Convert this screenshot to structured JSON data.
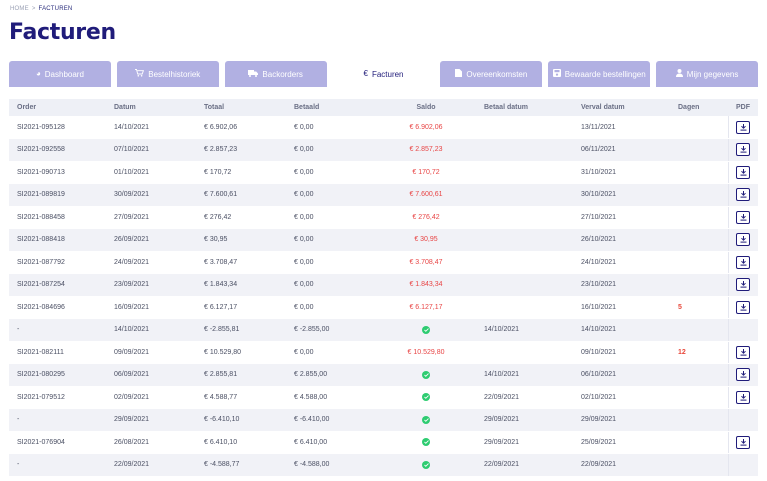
{
  "breadcrumb": {
    "home": "HOME",
    "sep": ">",
    "current": "FACTUREN"
  },
  "page_title": "Facturen",
  "colors": {
    "brand": "#201c7a",
    "tab_inactive": "#b1b0e2",
    "red": "#e84545",
    "green": "#2ecc71"
  },
  "tabs": [
    {
      "label": "Dashboard",
      "icon": "dashboard-icon",
      "active": false
    },
    {
      "label": "Bestelhistoriek",
      "icon": "cart-icon",
      "active": false
    },
    {
      "label": "Backorders",
      "icon": "truck-icon",
      "active": false
    },
    {
      "label": "Facturen",
      "icon": "euro-icon",
      "active": true
    },
    {
      "label": "Overeenkomsten",
      "icon": "document-icon",
      "active": false
    },
    {
      "label": "Bewaarde bestellingen",
      "icon": "save-icon",
      "active": false
    },
    {
      "label": "Mijn gegevens",
      "icon": "user-icon",
      "active": false
    }
  ],
  "table": {
    "headers": [
      "Order",
      "Datum",
      "Totaal",
      "Betaald",
      "Saldo",
      "Betaal datum",
      "Verval datum",
      "Dagen",
      "PDF"
    ],
    "rows": [
      {
        "order": "SI2021-095128",
        "datum": "14/10/2021",
        "totaal": "€ 6.902,06",
        "betaald": "€ 0,00",
        "saldo": "€ 6.902,06",
        "paid": false,
        "betaal_datum": "",
        "verval_datum": "13/11/2021",
        "dagen": "",
        "pdf": true
      },
      {
        "order": "SI2021-092558",
        "datum": "07/10/2021",
        "totaal": "€ 2.857,23",
        "betaald": "€ 0,00",
        "saldo": "€ 2.857,23",
        "paid": false,
        "betaal_datum": "",
        "verval_datum": "06/11/2021",
        "dagen": "",
        "pdf": true
      },
      {
        "order": "SI2021-090713",
        "datum": "01/10/2021",
        "totaal": "€ 170,72",
        "betaald": "€ 0,00",
        "saldo": "€ 170,72",
        "paid": false,
        "betaal_datum": "",
        "verval_datum": "31/10/2021",
        "dagen": "",
        "pdf": true
      },
      {
        "order": "SI2021-089819",
        "datum": "30/09/2021",
        "totaal": "€ 7.600,61",
        "betaald": "€ 0,00",
        "saldo": "€ 7.600,61",
        "paid": false,
        "betaal_datum": "",
        "verval_datum": "30/10/2021",
        "dagen": "",
        "pdf": true
      },
      {
        "order": "SI2021-088458",
        "datum": "27/09/2021",
        "totaal": "€ 276,42",
        "betaald": "€ 0,00",
        "saldo": "€ 276,42",
        "paid": false,
        "betaal_datum": "",
        "verval_datum": "27/10/2021",
        "dagen": "",
        "pdf": true
      },
      {
        "order": "SI2021-088418",
        "datum": "26/09/2021",
        "totaal": "€ 30,95",
        "betaald": "€ 0,00",
        "saldo": "€ 30,95",
        "paid": false,
        "betaal_datum": "",
        "verval_datum": "26/10/2021",
        "dagen": "",
        "pdf": true
      },
      {
        "order": "SI2021-087792",
        "datum": "24/09/2021",
        "totaal": "€ 3.708,47",
        "betaald": "€ 0,00",
        "saldo": "€ 3.708,47",
        "paid": false,
        "betaal_datum": "",
        "verval_datum": "24/10/2021",
        "dagen": "",
        "pdf": true
      },
      {
        "order": "SI2021-087254",
        "datum": "23/09/2021",
        "totaal": "€ 1.843,34",
        "betaald": "€ 0,00",
        "saldo": "€ 1.843,34",
        "paid": false,
        "betaal_datum": "",
        "verval_datum": "23/10/2021",
        "dagen": "",
        "pdf": true
      },
      {
        "order": "SI2021-084696",
        "datum": "16/09/2021",
        "totaal": "€ 6.127,17",
        "betaald": "€ 0,00",
        "saldo": "€ 6.127,17",
        "paid": false,
        "betaal_datum": "",
        "verval_datum": "16/10/2021",
        "dagen": "5",
        "pdf": true
      },
      {
        "order": "-",
        "datum": "14/10/2021",
        "totaal": "€ -2.855,81",
        "betaald": "€ -2.855,00",
        "saldo": "",
        "paid": true,
        "betaal_datum": "14/10/2021",
        "verval_datum": "14/10/2021",
        "dagen": "",
        "pdf": false
      },
      {
        "order": "SI2021-082111",
        "datum": "09/09/2021",
        "totaal": "€ 10.529,80",
        "betaald": "€ 0,00",
        "saldo": "€ 10.529,80",
        "paid": false,
        "betaal_datum": "",
        "verval_datum": "09/10/2021",
        "dagen": "12",
        "pdf": true
      },
      {
        "order": "SI2021-080295",
        "datum": "06/09/2021",
        "totaal": "€ 2.855,81",
        "betaald": "€ 2.855,00",
        "saldo": "",
        "paid": true,
        "betaal_datum": "14/10/2021",
        "verval_datum": "06/10/2021",
        "dagen": "",
        "pdf": true
      },
      {
        "order": "SI2021-079512",
        "datum": "02/09/2021",
        "totaal": "€ 4.588,77",
        "betaald": "€ 4.588,00",
        "saldo": "",
        "paid": true,
        "betaal_datum": "22/09/2021",
        "verval_datum": "02/10/2021",
        "dagen": "",
        "pdf": true
      },
      {
        "order": "-",
        "datum": "29/09/2021",
        "totaal": "€ -6.410,10",
        "betaald": "€ -6.410,00",
        "saldo": "",
        "paid": true,
        "betaal_datum": "29/09/2021",
        "verval_datum": "29/09/2021",
        "dagen": "",
        "pdf": false
      },
      {
        "order": "SI2021-076904",
        "datum": "26/08/2021",
        "totaal": "€ 6.410,10",
        "betaald": "€ 6.410,00",
        "saldo": "",
        "paid": true,
        "betaal_datum": "29/09/2021",
        "verval_datum": "25/09/2021",
        "dagen": "",
        "pdf": true
      },
      {
        "order": "-",
        "datum": "22/09/2021",
        "totaal": "€ -4.588,77",
        "betaald": "€ -4.588,00",
        "saldo": "",
        "paid": true,
        "betaal_datum": "22/09/2021",
        "verval_datum": "22/09/2021",
        "dagen": "",
        "pdf": false
      }
    ]
  }
}
